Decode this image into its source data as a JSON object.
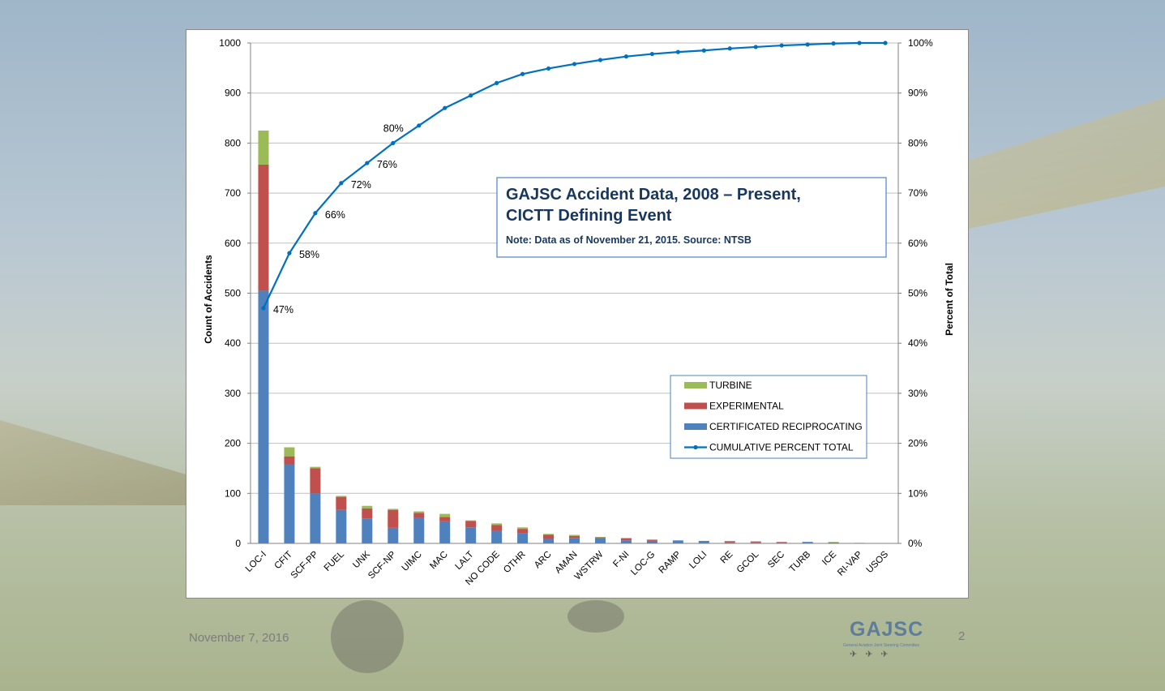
{
  "footer": {
    "date": "November 7, 2016",
    "page_number": "2"
  },
  "logo": {
    "name": "GAJSC",
    "subtitle": "General Aviation Joint Steering Committee"
  },
  "colors": {
    "turbine": "#9bbb59",
    "experimental": "#c0504d",
    "certificated": "#4f81bd",
    "cumulative": "#0070c0",
    "title_text": "#17375e",
    "title_border": "#4f81bd"
  },
  "chart_data": {
    "type": "bar",
    "subtype": "stacked-bar-with-cumulative-line",
    "title": "GAJSC Accident Data, 2008 – Present, CICTT Defining Event",
    "subtitle": "Note: Data as of November 21, 2015. Source: NTSB",
    "ylabel": "Count of Accidents",
    "y2label": "Percent of Total",
    "ylim": [
      0,
      1000
    ],
    "y2lim": [
      0,
      100
    ],
    "yticks": [
      "0",
      "100",
      "200",
      "300",
      "400",
      "500",
      "600",
      "700",
      "800",
      "900",
      "1000"
    ],
    "y2ticks": [
      "0%",
      "10%",
      "20%",
      "30%",
      "40%",
      "50%",
      "60%",
      "70%",
      "80%",
      "90%",
      "100%"
    ],
    "grid": true,
    "legend_position": "bottom-right",
    "categories": [
      "LOC-I",
      "CFIT",
      "SCF-PP",
      "FUEL",
      "UNK",
      "SCF-NP",
      "UIMC",
      "MAC",
      "LALT",
      "NO CODE",
      "OTHR",
      "ARC",
      "AMAN",
      "WSTRW",
      "F-NI",
      "LOC-G",
      "RAMP",
      "LOLI",
      "RE",
      "GCOL",
      "SEC",
      "TURB",
      "ICE",
      "RI-VAP",
      "USOS"
    ],
    "series": [
      {
        "name": "CERTIFICATED RECIPROCATING",
        "kind": "bar",
        "values": [
          505,
          158,
          100,
          67,
          50,
          31,
          51,
          44,
          32,
          25,
          20,
          9,
          11,
          10,
          6,
          5,
          6,
          5,
          2,
          2,
          2,
          3,
          2,
          1,
          0
        ]
      },
      {
        "name": "EXPERIMENTAL",
        "kind": "bar",
        "values": [
          252,
          16,
          50,
          26,
          20,
          36,
          10,
          9,
          13,
          12,
          9,
          8,
          4,
          2,
          4,
          2,
          0,
          0,
          2,
          2,
          1,
          0,
          0,
          0,
          0
        ]
      },
      {
        "name": "TURBINE",
        "kind": "bar",
        "values": [
          68,
          18,
          3,
          2,
          5,
          2,
          3,
          6,
          1,
          3,
          3,
          2,
          2,
          1,
          1,
          1,
          0,
          0,
          1,
          0,
          0,
          0,
          1,
          0,
          0
        ]
      },
      {
        "name": "CUMULATIVE PERCENT TOTAL",
        "kind": "line",
        "axis": "right",
        "values": [
          47,
          58,
          66,
          72,
          76,
          80,
          83.5,
          87,
          89.5,
          92,
          93.8,
          94.9,
          95.8,
          96.6,
          97.3,
          97.8,
          98.2,
          98.5,
          98.9,
          99.2,
          99.5,
          99.7,
          99.9,
          100,
          100
        ]
      }
    ],
    "line_labels": [
      {
        "index": 0,
        "text": "47%"
      },
      {
        "index": 1,
        "text": "58%"
      },
      {
        "index": 2,
        "text": "66%"
      },
      {
        "index": 3,
        "text": "72%"
      },
      {
        "index": 4,
        "text": "76%"
      },
      {
        "index": 5,
        "text": "80%"
      }
    ]
  }
}
